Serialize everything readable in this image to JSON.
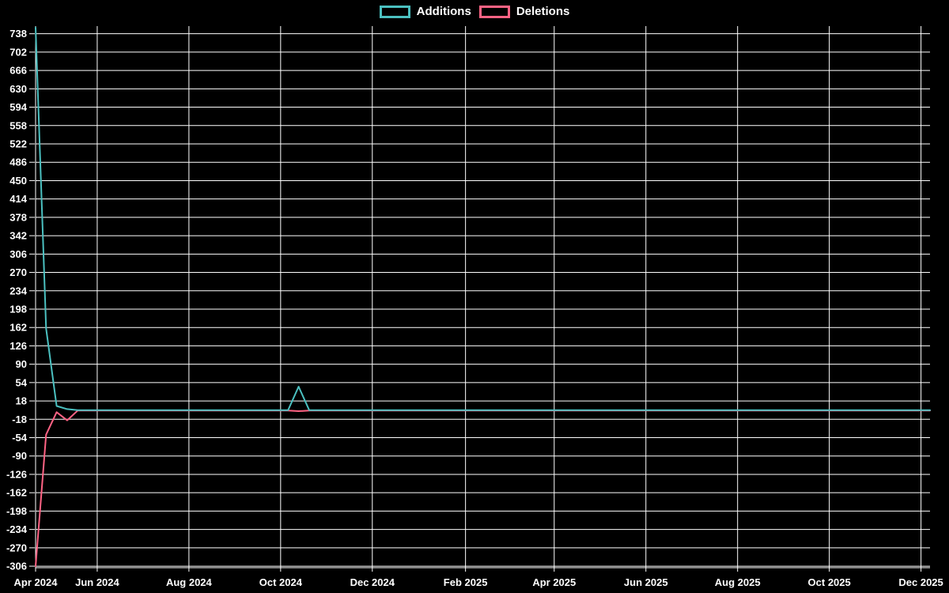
{
  "page": {
    "background": "#000000",
    "title": ""
  },
  "legend": {
    "position": "top-center",
    "items": [
      {
        "label": "Additions",
        "color": "#4bc0c0"
      },
      {
        "label": "Deletions",
        "color": "#ff6384"
      }
    ]
  },
  "chart_data": {
    "type": "line",
    "title": "",
    "xlabel": "",
    "ylabel": "",
    "background": "#000000",
    "grid": true,
    "grid_color": "#ffffff",
    "text_color": "#ffffff",
    "legend_position": "top-center",
    "x_axis": {
      "type": "time",
      "min": "2024-04-21",
      "max": "2025-12-07",
      "ticks": [
        {
          "label": "Apr 2024",
          "date": "2024-04-21"
        },
        {
          "label": "Jun 2024",
          "date": "2024-06-01"
        },
        {
          "label": "Aug 2024",
          "date": "2024-08-01"
        },
        {
          "label": "Oct 2024",
          "date": "2024-10-01"
        },
        {
          "label": "Dec 2024",
          "date": "2024-12-01"
        },
        {
          "label": "Feb 2025",
          "date": "2025-02-01"
        },
        {
          "label": "Apr 2025",
          "date": "2025-04-01"
        },
        {
          "label": "Jun 2025",
          "date": "2025-06-01"
        },
        {
          "label": "Aug 2025",
          "date": "2025-08-01"
        },
        {
          "label": "Oct 2025",
          "date": "2025-10-01"
        },
        {
          "label": "Dec 2025",
          "date": "2025-12-01"
        }
      ]
    },
    "y_axis": {
      "domain": [
        -309,
        753
      ],
      "tick_step": 36,
      "ticks": [
        738,
        702,
        666,
        630,
        594,
        558,
        522,
        486,
        450,
        414,
        378,
        342,
        306,
        270,
        234,
        198,
        162,
        126,
        90,
        54,
        18,
        -18,
        -54,
        -90,
        -126,
        -162,
        -198,
        -234,
        -270,
        -306
      ]
    },
    "series": [
      {
        "name": "Additions",
        "color": "#4bc0c0",
        "points": [
          [
            "2024-04-21",
            750
          ],
          [
            "2024-04-28",
            160
          ],
          [
            "2024-05-05",
            8
          ],
          [
            "2024-05-12",
            2
          ],
          [
            "2024-05-19",
            0
          ],
          [
            "2024-10-06",
            0
          ],
          [
            "2024-10-13",
            46
          ],
          [
            "2024-10-20",
            0
          ],
          [
            "2025-12-07",
            0
          ]
        ]
      },
      {
        "name": "Deletions",
        "color": "#ff6384",
        "points": [
          [
            "2024-04-21",
            -306
          ],
          [
            "2024-04-28",
            -48
          ],
          [
            "2024-05-05",
            -4
          ],
          [
            "2024-05-12",
            -20
          ],
          [
            "2024-05-19",
            -1
          ],
          [
            "2024-10-06",
            -1
          ],
          [
            "2024-10-13",
            -2
          ],
          [
            "2024-10-20",
            -1
          ],
          [
            "2025-12-07",
            -1
          ]
        ]
      }
    ],
    "draw_order": [
      "Deletions",
      "Additions"
    ],
    "line_width": 2
  }
}
